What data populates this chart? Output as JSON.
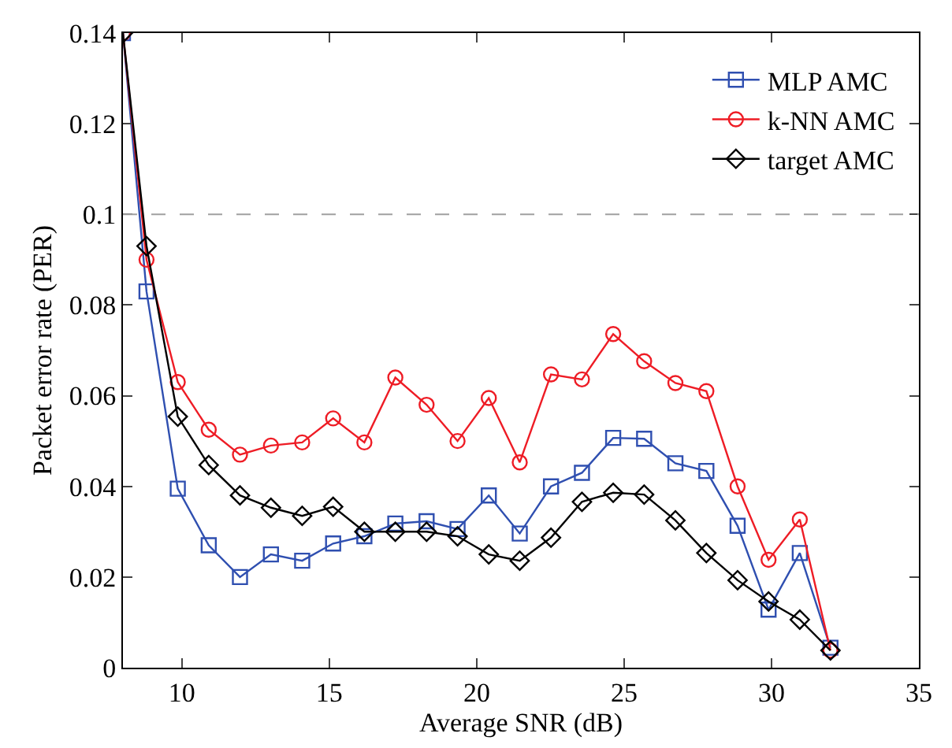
{
  "chart_data": {
    "type": "line",
    "xlabel": "Average SNR (dB)",
    "ylabel": "Packet error rate (PER)",
    "x": [
      8,
      8.8,
      9.86,
      10.91,
      11.97,
      13.02,
      14.08,
      15.13,
      16.19,
      17.24,
      18.3,
      19.35,
      20.41,
      21.46,
      22.52,
      23.57,
      24.63,
      25.68,
      26.74,
      27.79,
      28.85,
      29.9,
      30.96,
      32.0
    ],
    "series": [
      {
        "name": "MLP AMC",
        "color": "#2f4fb0",
        "marker": "square",
        "values": [
          0.14,
          0.083,
          0.0395,
          0.027,
          0.02,
          0.025,
          0.0236,
          0.0274,
          0.029,
          0.0318,
          0.0323,
          0.0306,
          0.038,
          0.0296,
          0.04,
          0.043,
          0.0507,
          0.0505,
          0.0451,
          0.0434,
          0.0313,
          0.0128,
          0.0253,
          0.0044
        ]
      },
      {
        "name": "k-NN AMC",
        "color": "#ee1c25",
        "marker": "circle",
        "values": [
          0.14,
          0.09,
          0.063,
          0.0525,
          0.047,
          0.049,
          0.0497,
          0.055,
          0.0497,
          0.064,
          0.058,
          0.05,
          0.0595,
          0.0453,
          0.0647,
          0.0636,
          0.0736,
          0.0676,
          0.0628,
          0.061,
          0.04,
          0.0238,
          0.0327,
          0.0038
        ]
      },
      {
        "name": "target AMC",
        "color": "#000000",
        "marker": "diamond",
        "values": [
          0.14,
          0.093,
          0.0554,
          0.0447,
          0.038,
          0.0353,
          0.0335,
          0.0355,
          0.03,
          0.03,
          0.03,
          0.029,
          0.025,
          0.0236,
          0.0287,
          0.0366,
          0.0386,
          0.0382,
          0.0325,
          0.0253,
          0.0193,
          0.0146,
          0.0106,
          0.0038
        ]
      }
    ],
    "xlim": [
      8,
      35
    ],
    "xticks": [
      10,
      15,
      20,
      25,
      30,
      35
    ],
    "ylim": [
      0,
      0.14
    ],
    "yticks": [
      0,
      0.02,
      0.04,
      0.06,
      0.08,
      0.1,
      0.12,
      0.14
    ],
    "ref_lines": [
      {
        "axis": "y",
        "value": 0.1,
        "color": "#a0a0a0",
        "line_style": "dashed"
      }
    ],
    "legend": "top right",
    "line_style": "solid"
  }
}
